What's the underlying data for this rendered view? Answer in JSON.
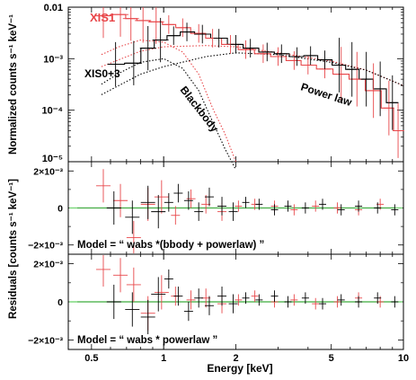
{
  "chart_data": [
    {
      "type": "line",
      "panel": "spectrum",
      "ylabel": "Normalized counts s⁻¹ keV⁻¹",
      "xscale": "log",
      "yscale": "log",
      "xlim": [
        0.4,
        10
      ],
      "ylim": [
        1e-05,
        0.01
      ],
      "ytick_labels": [
        "0.01",
        "10⁻³",
        "10⁻⁴",
        "10⁻⁵"
      ],
      "annotations": [
        "XIS1",
        "XIS0+3",
        "Blackbody",
        "Power law"
      ],
      "colors": {
        "xis1": "#e8474a",
        "xis03": "#000000"
      },
      "series": [
        {
          "name": "XIS1",
          "x": [
            0.56,
            0.66,
            0.73,
            0.82,
            0.93,
            1.05,
            1.2,
            1.4,
            1.6,
            1.9,
            2.2,
            2.6,
            3.0,
            3.5,
            4.0,
            4.7,
            5.5,
            6.4,
            7.5,
            8.7,
            9.5
          ],
          "y": [
            0.0068,
            0.0072,
            0.006,
            0.0055,
            0.0052,
            0.0046,
            0.004,
            0.0031,
            0.0025,
            0.0019,
            0.0015,
            0.00125,
            0.0011,
            0.00092,
            0.00075,
            0.00063,
            0.0005,
            0.0004,
            0.00024,
            0.00011,
            4e-05
          ]
        },
        {
          "name": "XIS0+3",
          "x": [
            0.63,
            0.75,
            0.86,
            0.97,
            1.1,
            1.25,
            1.45,
            1.7,
            2.0,
            2.3,
            2.7,
            3.1,
            3.6,
            4.1,
            4.7,
            5.4,
            6.1,
            7.0,
            8.0,
            9.0
          ],
          "y": [
            0.00078,
            0.00082,
            0.0016,
            0.0023,
            0.0028,
            0.0033,
            0.003,
            0.0025,
            0.0019,
            0.0016,
            0.00135,
            0.00125,
            0.0011,
            0.00115,
            0.00095,
            0.00075,
            0.00062,
            0.0004,
            0.00026,
            0.00014
          ]
        }
      ],
      "model_components": [
        {
          "label": "Blackbody",
          "x": [
            0.55,
            0.65,
            0.8,
            1.0,
            1.2,
            1.4,
            1.6,
            1.8,
            2.0
          ],
          "y_xis1": [
            0.0012,
            0.0017,
            0.0023,
            0.0021,
            0.00135,
            0.0005,
            0.00011,
            3.5e-05,
            1e-05
          ],
          "y_xis03": [
            0.00032,
            0.00052,
            0.00085,
            0.001,
            0.00065,
            0.00024,
            6e-05,
            1.8e-05,
            7e-06
          ]
        },
        {
          "label": "Power law",
          "x": [
            0.55,
            0.8,
            1.0,
            1.5,
            2.0,
            3.0,
            5.0,
            7.0,
            10.0
          ],
          "y_xis1": [
            0.0007,
            0.0014,
            0.0017,
            0.0018,
            0.0017,
            0.0013,
            0.0009,
            0.0006,
            0.0003
          ],
          "y_xis03": [
            0.0002,
            0.0005,
            0.0007,
            0.0011,
            0.0013,
            0.0012,
            0.00085,
            0.0006,
            0.0003
          ]
        }
      ]
    },
    {
      "type": "scatter",
      "panel": "residuals-bbody",
      "xscale": "log",
      "ylim": [
        -0.0025,
        0.0025
      ],
      "ytick_labels": [
        "2×10⁻³",
        "0",
        "−2×10⁻³"
      ],
      "caption": "Model = “ wabs *(bbody + powerlaw) ”",
      "series": [
        {
          "name": "XIS1",
          "x": [
            0.56,
            0.66,
            0.75,
            0.86,
            0.98,
            1.12,
            1.3,
            1.5,
            1.75,
            2.05,
            2.4,
            2.9,
            3.5,
            4.3,
            5.3,
            6.5,
            8.0
          ],
          "y": [
            0.0012,
            0.0004,
            -0.0016,
            0.0002,
            0.0006,
            -0.0004,
            0.0005,
            0.0002,
            -0.0002,
            0.0001,
            0.0002,
            0.0001,
            -0.0001,
            0.0001,
            0.0,
            -0.0001,
            0.0002
          ]
        },
        {
          "name": "XIS0+3",
          "x": [
            0.62,
            0.74,
            0.86,
            0.95,
            1.05,
            1.15,
            1.27,
            1.4,
            1.55,
            1.75,
            1.95,
            2.2,
            2.5,
            2.9,
            3.3,
            3.9,
            4.6,
            5.5,
            6.5,
            7.8,
            9.2
          ],
          "y": [
            0.0,
            -0.0005,
            0.0003,
            -0.0002,
            0.0003,
            0.0008,
            0.0004,
            -0.0002,
            0.0006,
            0.0001,
            -0.0002,
            0.0003,
            0.0002,
            -0.0001,
            0.0001,
            0.0,
            0.0002,
            -0.0001,
            0.0001,
            0.0,
            -0.0001
          ]
        }
      ]
    },
    {
      "type": "scatter",
      "panel": "residuals-powerlaw",
      "xscale": "log",
      "xlim": [
        0.4,
        10
      ],
      "ylim": [
        -0.0025,
        0.0025
      ],
      "ytick_labels": [
        "2×10⁻³",
        "0",
        "−2×10⁻³"
      ],
      "xtick_labels": [
        "0.5",
        "1",
        "2",
        "5",
        "10"
      ],
      "xlabel": "Energy [keV]",
      "caption": "Model =  “ wabs * powerlaw ”",
      "series": [
        {
          "name": "XIS1",
          "x": [
            0.56,
            0.66,
            0.75,
            0.86,
            0.98,
            1.12,
            1.3,
            1.5,
            1.75,
            2.05,
            2.4,
            2.9,
            3.5,
            4.3,
            5.3,
            6.5,
            8.0
          ],
          "y": [
            0.0017,
            0.0014,
            0.0009,
            -0.0006,
            0.0005,
            0.0003,
            0.0001,
            0.0002,
            -0.0001,
            0.0001,
            0.0003,
            0.0,
            0.0001,
            -0.0001,
            0.0,
            0.0002,
            0.0
          ]
        },
        {
          "name": "XIS0+3",
          "x": [
            0.62,
            0.74,
            0.86,
            0.95,
            1.05,
            1.15,
            1.27,
            1.4,
            1.55,
            1.75,
            1.95,
            2.2,
            2.5,
            2.9,
            3.3,
            3.9,
            4.6,
            5.5,
            6.5,
            7.8,
            9.2
          ],
          "y": [
            0.0,
            -0.0004,
            -0.0008,
            0.0004,
            0.0012,
            0.0003,
            -0.0005,
            0.0002,
            -0.0002,
            0.0003,
            -0.0001,
            0.0002,
            0.0001,
            0.0003,
            0.0,
            0.0002,
            -0.0001,
            0.0001,
            0.0,
            0.0002,
            0.0
          ]
        }
      ]
    }
  ],
  "shared": {
    "residuals_ylabel": "Residuals [counts s⁻¹ keV⁻¹]",
    "zero_line_color": "#7fd87f"
  }
}
